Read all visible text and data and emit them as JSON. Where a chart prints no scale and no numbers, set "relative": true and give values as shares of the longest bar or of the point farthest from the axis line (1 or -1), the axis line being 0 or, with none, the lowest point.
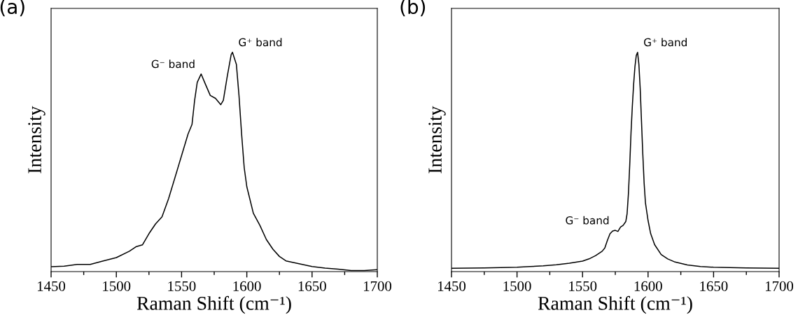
{
  "chart_data": [
    {
      "type": "line",
      "title": "(a)",
      "xlabel": "Raman Shift (cm⁻¹)",
      "ylabel": "Intensity",
      "relative": true,
      "xlim": [
        1450,
        1700
      ],
      "xticks": [
        1450,
        {
          "value": 1475,
          "label": null
        },
        1500,
        {
          "value": 1525,
          "label": null
        },
        1550,
        {
          "value": 1575,
          "label": null
        },
        1600,
        {
          "value": 1625,
          "label": null
        },
        1650,
        {
          "value": 1675,
          "label": null
        },
        1700
      ],
      "tick_labels": "x",
      "grid": false,
      "legend": false,
      "annotations": [
        {
          "text": "G⁻ band",
          "x": 1565,
          "y": 0.901
        },
        {
          "text": "G⁺ band",
          "x": 1589,
          "y": 1.0
        }
      ],
      "series": [
        {
          "color": "#000000",
          "x": [
            1450,
            1460,
            1470,
            1480,
            1490,
            1500,
            1510,
            1515,
            1520,
            1525,
            1530,
            1535,
            1540,
            1545,
            1550,
            1555,
            1558,
            1560,
            1562,
            1565,
            1568,
            1572,
            1576,
            1580,
            1582,
            1585,
            1588,
            1589,
            1592,
            1594,
            1596,
            1598,
            1600,
            1605,
            1610,
            1615,
            1620,
            1625,
            1630,
            1640,
            1650,
            1660,
            1670,
            1680,
            1690,
            1700
          ],
          "values": [
            0.022,
            0.025,
            0.033,
            0.033,
            0.049,
            0.064,
            0.093,
            0.113,
            0.122,
            0.173,
            0.217,
            0.25,
            0.332,
            0.43,
            0.529,
            0.628,
            0.671,
            0.781,
            0.863,
            0.901,
            0.858,
            0.803,
            0.79,
            0.761,
            0.781,
            0.89,
            0.989,
            1.0,
            0.945,
            0.803,
            0.628,
            0.474,
            0.387,
            0.266,
            0.211,
            0.146,
            0.102,
            0.069,
            0.049,
            0.036,
            0.023,
            0.016,
            0.011,
            0.005,
            0.005,
            0.009
          ]
        }
      ]
    },
    {
      "type": "line",
      "title": "(b)",
      "xlabel": "Raman Shift (cm⁻¹)",
      "ylabel": "Intensity",
      "relative": true,
      "xlim": [
        1450,
        1700
      ],
      "xticks": [
        1450,
        {
          "value": 1475,
          "label": null
        },
        1500,
        {
          "value": 1525,
          "label": null
        },
        1550,
        {
          "value": 1575,
          "label": null
        },
        1600,
        {
          "value": 1625,
          "label": null
        },
        1650,
        {
          "value": 1675,
          "label": null
        },
        1700
      ],
      "tick_labels": "x",
      "grid": false,
      "legend": false,
      "annotations": [
        {
          "text": "G⁻ band",
          "x": 1575,
          "y": 0.188
        },
        {
          "text": "G⁺ band",
          "x": 1592,
          "y": 1.0
        }
      ],
      "series": [
        {
          "color": "#000000",
          "x": [
            1450,
            1475,
            1500,
            1510,
            1520,
            1530,
            1540,
            1550,
            1555,
            1560,
            1565,
            1567,
            1569,
            1571,
            1573,
            1575,
            1577,
            1579,
            1581,
            1583,
            1584,
            1585,
            1586,
            1587,
            1588,
            1589,
            1590,
            1591,
            1592,
            1593,
            1594,
            1595,
            1596,
            1597,
            1598,
            1600,
            1602,
            1605,
            1610,
            1615,
            1620,
            1630,
            1640,
            1650,
            1675,
            1700
          ],
          "values": [
            0.015,
            0.017,
            0.02,
            0.023,
            0.026,
            0.031,
            0.038,
            0.048,
            0.058,
            0.073,
            0.093,
            0.108,
            0.143,
            0.173,
            0.185,
            0.188,
            0.183,
            0.203,
            0.211,
            0.228,
            0.264,
            0.354,
            0.484,
            0.634,
            0.754,
            0.855,
            0.935,
            0.985,
            1.0,
            0.945,
            0.835,
            0.684,
            0.534,
            0.404,
            0.314,
            0.233,
            0.173,
            0.123,
            0.078,
            0.058,
            0.045,
            0.03,
            0.023,
            0.02,
            0.017,
            0.015
          ]
        }
      ]
    }
  ]
}
